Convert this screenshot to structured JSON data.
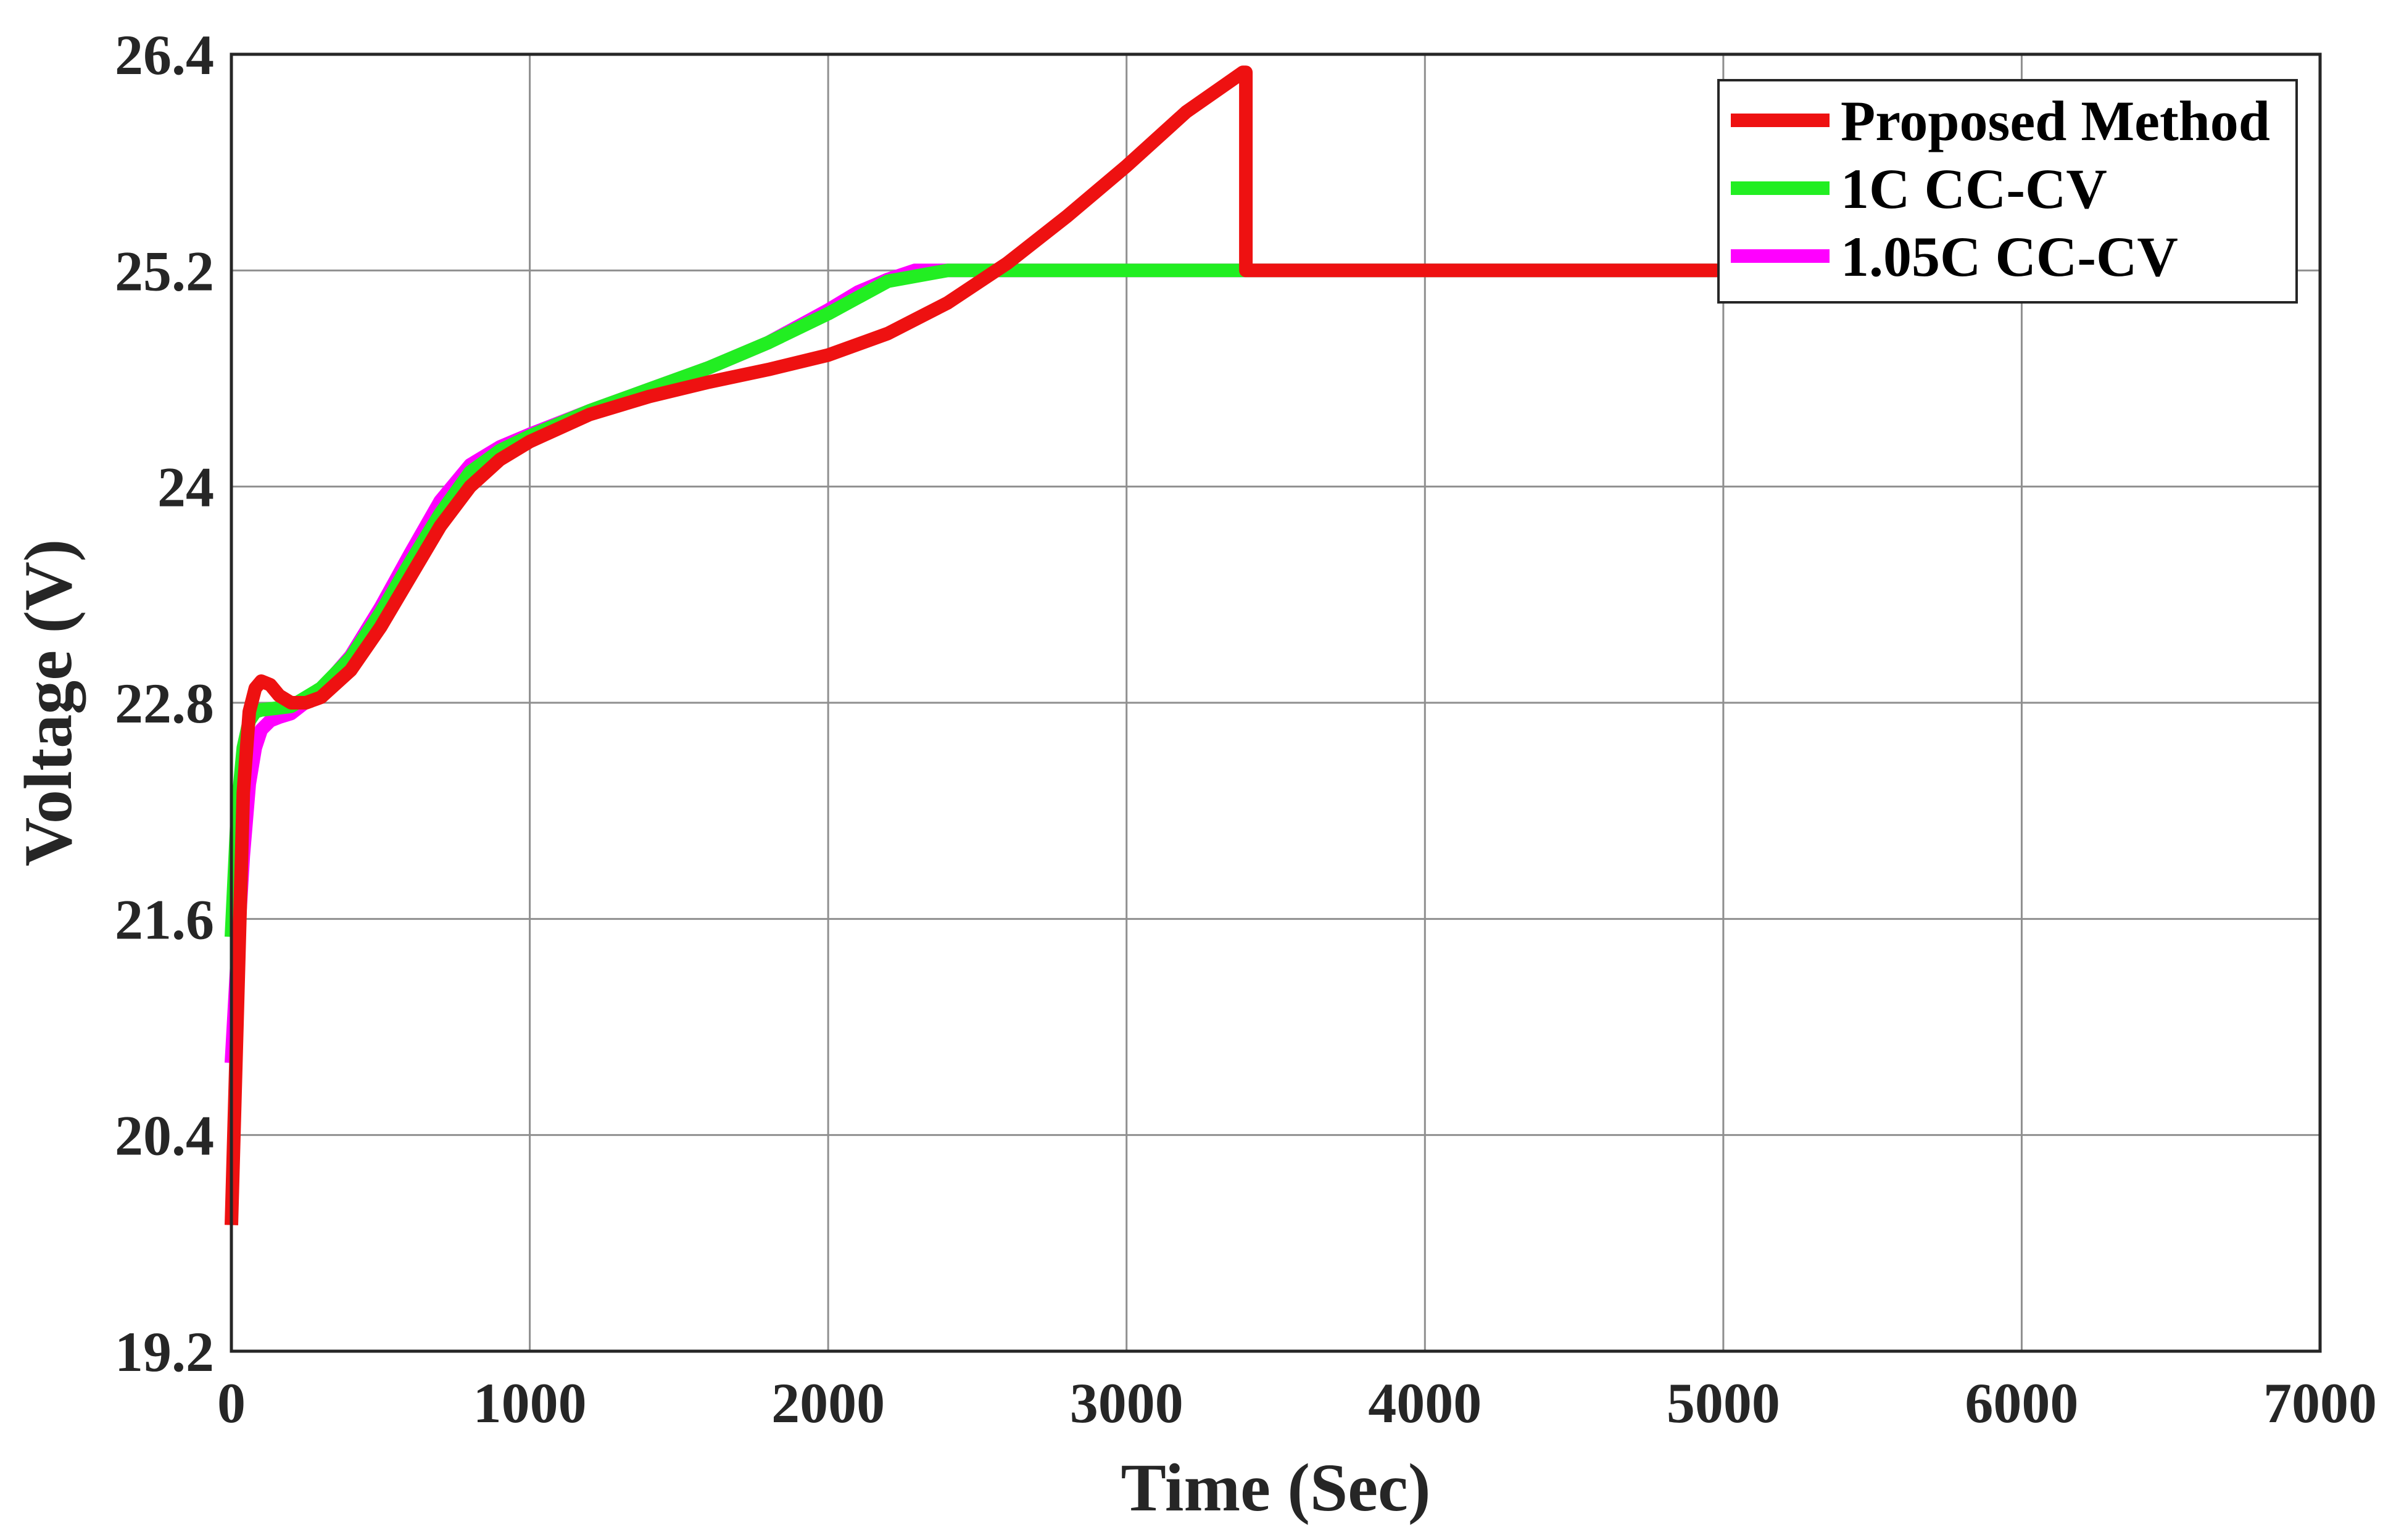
{
  "chart_data": {
    "type": "line",
    "title": "",
    "xlabel": "Time (Sec)",
    "ylabel": "Voltage (V)",
    "xlim": [
      0,
      7000
    ],
    "ylim": [
      19.2,
      26.4
    ],
    "xticks": [
      0,
      1000,
      2000,
      3000,
      4000,
      5000,
      6000,
      7000
    ],
    "yticks": [
      19.2,
      20.4,
      21.6,
      22.8,
      24,
      25.2,
      26.4
    ],
    "xtick_labels": [
      "0",
      "1000",
      "2000",
      "3000",
      "4000",
      "5000",
      "6000",
      "7000"
    ],
    "ytick_labels": [
      "19.2",
      "20.4",
      "21.6",
      "22.8",
      "24",
      "25.2",
      "26.4"
    ],
    "grid": true,
    "legend_position": "top-right",
    "series": [
      {
        "name": "Proposed Method",
        "color": "#ee1111",
        "x": [
          0,
          20,
          40,
          60,
          80,
          100,
          130,
          160,
          200,
          250,
          300,
          400,
          500,
          600,
          700,
          800,
          900,
          1000,
          1200,
          1400,
          1600,
          1800,
          2000,
          2200,
          2400,
          2600,
          2800,
          3000,
          3200,
          3390,
          3400,
          3400,
          5000
        ],
        "y": [
          19.9,
          21.1,
          22.3,
          22.75,
          22.88,
          22.92,
          22.9,
          22.84,
          22.8,
          22.8,
          22.83,
          22.98,
          23.22,
          23.5,
          23.78,
          24.0,
          24.15,
          24.25,
          24.4,
          24.5,
          24.58,
          24.65,
          24.73,
          24.85,
          25.02,
          25.24,
          25.5,
          25.78,
          26.08,
          26.3,
          26.3,
          25.2,
          25.2
        ]
      },
      {
        "name": "1C CC-CV",
        "color": "#22ee22",
        "x": [
          0,
          20,
          40,
          60,
          80,
          100,
          150,
          200,
          300,
          400,
          500,
          600,
          700,
          800,
          900,
          1000,
          1200,
          1400,
          1600,
          1800,
          2000,
          2200,
          2400,
          2600,
          5000
        ],
        "y": [
          21.5,
          22.2,
          22.55,
          22.7,
          22.75,
          22.76,
          22.77,
          22.78,
          22.88,
          23.05,
          23.3,
          23.58,
          23.85,
          24.08,
          24.2,
          24.28,
          24.42,
          24.54,
          24.66,
          24.8,
          24.96,
          25.14,
          25.2,
          25.2,
          25.2
        ]
      },
      {
        "name": "1.05C CC-CV",
        "color": "#ff00ff",
        "x": [
          0,
          20,
          40,
          60,
          80,
          100,
          130,
          160,
          200,
          300,
          400,
          500,
          600,
          700,
          800,
          900,
          1000,
          1200,
          1400,
          1600,
          1800,
          2000,
          2100,
          2200,
          2290,
          5000
        ],
        "y": [
          20.8,
          21.4,
          21.95,
          22.35,
          22.55,
          22.65,
          22.7,
          22.72,
          22.74,
          22.87,
          23.06,
          23.33,
          23.63,
          23.92,
          24.12,
          24.22,
          24.29,
          24.42,
          24.54,
          24.66,
          24.8,
          24.98,
          25.08,
          25.15,
          25.2,
          25.2
        ]
      }
    ]
  }
}
